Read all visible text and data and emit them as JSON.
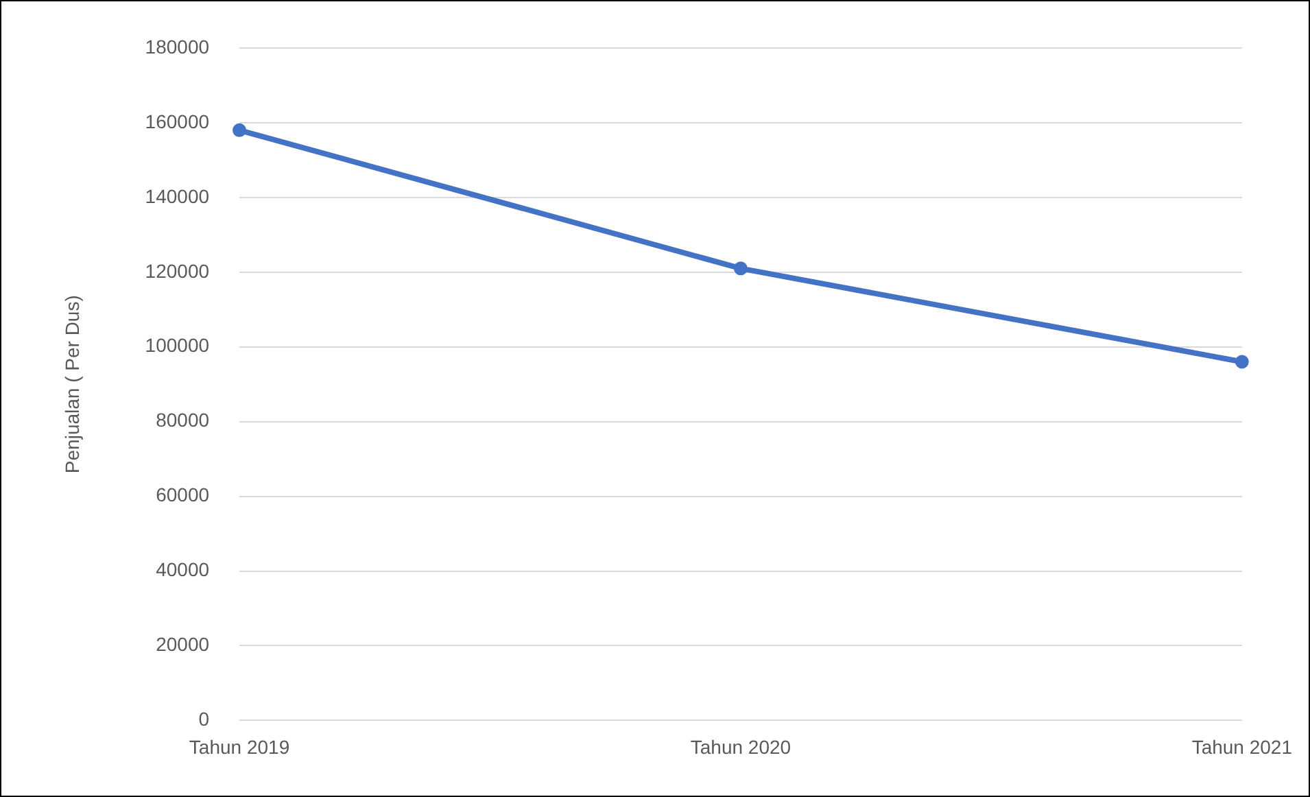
{
  "chart_data": {
    "type": "line",
    "ylabel": "Penjualan ( Per Dus)",
    "categories": [
      "Tahun 2019",
      "Tahun 2020",
      "Tahun 2021"
    ],
    "series": [
      {
        "color": "#4472c4",
        "values": [
          158000,
          121000,
          96000
        ]
      }
    ],
    "ylim": [
      0,
      180000
    ],
    "yticks": [
      0,
      20000,
      40000,
      60000,
      80000,
      100000,
      120000,
      140000,
      160000,
      180000
    ],
    "grid": "y",
    "marker": "circle",
    "line_style": "solid",
    "legend": false
  }
}
